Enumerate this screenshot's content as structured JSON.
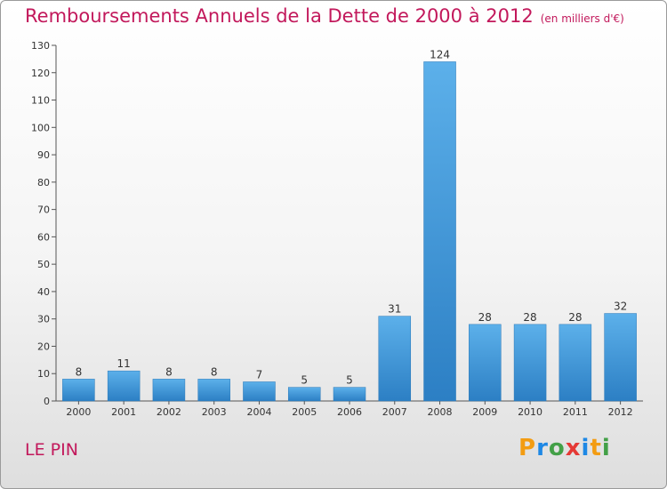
{
  "title": "Remboursements Annuels de la Dette de 2000 à 2012",
  "subtitle": "(en milliers d'€)",
  "commune": "LE PIN",
  "logo": {
    "letters": [
      "P",
      "r",
      "o",
      "x",
      "i",
      "t",
      "i"
    ],
    "colors": [
      "#f39c12",
      "#1e88e5",
      "#43a047",
      "#e53935",
      "#1e88e5",
      "#f39c12",
      "#43a047"
    ]
  },
  "colors": {
    "title": "#c2185b",
    "bar": "#3a96d8"
  },
  "chart_data": {
    "type": "bar",
    "categories": [
      "2000",
      "2001",
      "2002",
      "2003",
      "2004",
      "2005",
      "2006",
      "2007",
      "2008",
      "2009",
      "2010",
      "2011",
      "2012"
    ],
    "values": [
      8,
      11,
      8,
      8,
      7,
      5,
      5,
      31,
      124,
      28,
      28,
      28,
      32
    ],
    "ylim": [
      0,
      130
    ],
    "yticks": [
      0,
      10,
      20,
      30,
      40,
      50,
      60,
      70,
      80,
      90,
      100,
      110,
      120,
      130
    ],
    "grid": false,
    "title": "Remboursements Annuels de la Dette de 2000 à 2012",
    "subtitle": "(en milliers d'€)",
    "xlabel": "",
    "ylabel": ""
  }
}
